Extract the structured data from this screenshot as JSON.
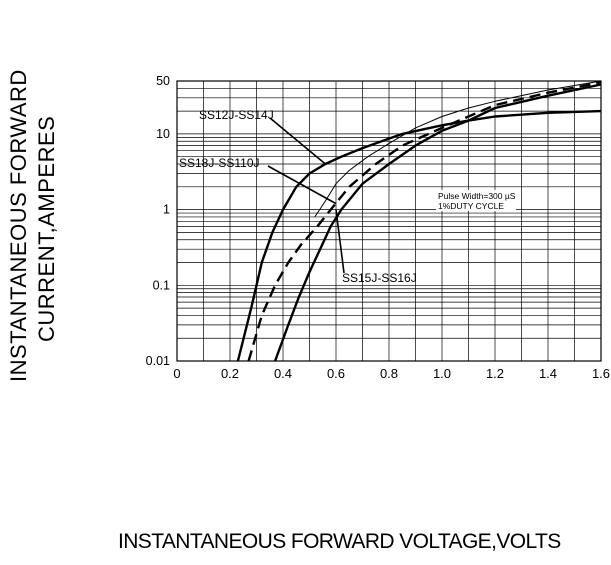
{
  "chart_data": {
    "type": "line",
    "y_scale": "log",
    "xlabel": "INSTANTANEOUS FORWARD VOLTAGE,VOLTS",
    "ylabel_lines": [
      "INSTANTANEOUS FORWARD",
      "CURRENT,AMPERES"
    ],
    "xlim": [
      0,
      1.6
    ],
    "ylim": [
      0.01,
      50
    ],
    "x_ticks": [
      "0",
      "0.2",
      "0.4",
      "0.6",
      "0.8",
      "1.0",
      "1.2",
      "1.4",
      "1.6"
    ],
    "y_ticks": [
      {
        "label": "50",
        "value": 50
      },
      {
        "label": "10",
        "value": 10
      },
      {
        "label": "1",
        "value": 1
      },
      {
        "label": "0.1",
        "value": 0.1
      },
      {
        "label": "0.01",
        "value": 0.01
      }
    ],
    "grid": true,
    "note_lines": [
      "Pulse Width=300 µS",
      "1%DUTY CYCLE"
    ],
    "series": [
      {
        "name": "SS12J-SS14J",
        "style": "solid",
        "width": 2.4,
        "x": [
          0.23,
          0.28,
          0.32,
          0.36,
          0.4,
          0.45,
          0.5,
          0.56,
          0.62,
          0.7,
          0.85,
          1.0,
          1.1,
          1.2,
          1.4,
          1.6
        ],
        "y": [
          0.01,
          0.05,
          0.2,
          0.5,
          1.0,
          2.0,
          3.0,
          4.0,
          5.0,
          6.5,
          10,
          13,
          15,
          17,
          19,
          20
        ]
      },
      {
        "name": "SS15J-SS16J",
        "style": "solid",
        "width": 2.4,
        "x": [
          0.37,
          0.42,
          0.46,
          0.5,
          0.54,
          0.58,
          0.62,
          0.7,
          0.8,
          0.9,
          1.0,
          1.1,
          1.2,
          1.4,
          1.6
        ],
        "y": [
          0.01,
          0.03,
          0.07,
          0.15,
          0.3,
          0.6,
          1.0,
          2.2,
          4.0,
          7.0,
          11,
          15,
          22,
          32,
          45
        ]
      },
      {
        "name": "SS18J-SS110J",
        "style": "dashed",
        "width": 2.4,
        "x": [
          0.27,
          0.32,
          0.37,
          0.42,
          0.47,
          0.53,
          0.58,
          0.65,
          0.75,
          0.85,
          1.0,
          1.1,
          1.2,
          1.4,
          1.6
        ],
        "y": [
          0.01,
          0.04,
          0.1,
          0.2,
          0.35,
          0.6,
          1.0,
          2.0,
          4.0,
          7.0,
          12,
          17,
          24,
          35,
          48
        ]
      },
      {
        "name": "",
        "style": "solid",
        "width": 1.0,
        "x": [
          0.52,
          0.56,
          0.6,
          0.65,
          0.72,
          0.8,
          0.9,
          1.0,
          1.1,
          1.2,
          1.4,
          1.6
        ],
        "y": [
          0.8,
          1.3,
          2.2,
          3.3,
          5.0,
          7.5,
          12,
          17,
          22,
          27,
          38,
          50
        ]
      }
    ],
    "callouts": [
      {
        "text": "SS12J-SS14J",
        "target": [
          0.56,
          4.0
        ]
      },
      {
        "text": "SS18J-SS110J",
        "target": [
          0.6,
          1.2
        ]
      },
      {
        "text": "SS15J-SS16J",
        "target": [
          0.6,
          1.0
        ]
      }
    ]
  }
}
